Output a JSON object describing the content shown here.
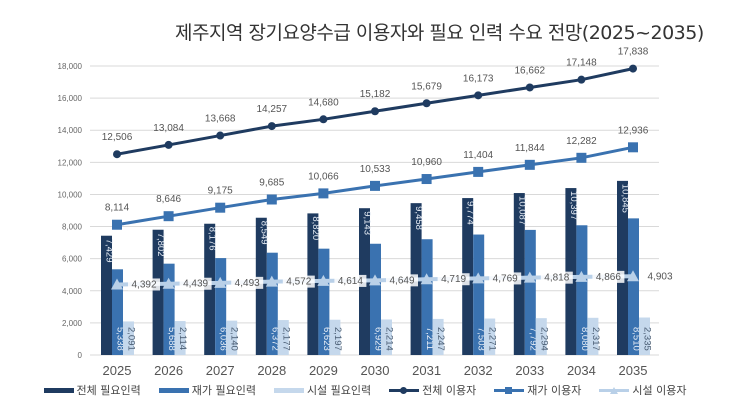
{
  "chart_data": {
    "type": "bar",
    "title": "제주지역 장기요양수급 이용자와 필요 인력 수요 전망(2025~2035)",
    "xlabel": "",
    "ylabel": "",
    "ylim": [
      0,
      18000
    ],
    "yticks": [
      0,
      2000,
      4000,
      6000,
      8000,
      10000,
      12000,
      14000,
      16000,
      18000
    ],
    "ytick_labels": [
      "0",
      "2,000",
      "4,000",
      "6,000",
      "8,000",
      "10,000",
      "12,000",
      "14,000",
      "16,000",
      "18,000"
    ],
    "grid": true,
    "legend_position": "bottom",
    "categories": [
      "2025",
      "2026",
      "2027",
      "2028",
      "2029",
      "2030",
      "2031",
      "2032",
      "2033",
      "2034",
      "2035"
    ],
    "series": [
      {
        "name": "전체 필요인력",
        "kind": "bar",
        "color": "#1f3b60",
        "values": [
          7429,
          7802,
          8176,
          8549,
          8820,
          9143,
          9458,
          9774,
          10087,
          10397,
          10845
        ],
        "labels": [
          "7,429",
          "7,802",
          "8,176",
          "8,549",
          "8,820",
          "9,143",
          "9,458",
          "9,774",
          "10,087",
          "10,397",
          "10,845"
        ]
      },
      {
        "name": "재가 필요인력",
        "kind": "bar",
        "color": "#3a72b0",
        "values": [
          5338,
          5688,
          6036,
          6372,
          6623,
          6929,
          7211,
          7503,
          7792,
          8080,
          8510
        ],
        "labels": [
          "5,338",
          "5,688",
          "6,036",
          "6,372",
          "6,623",
          "6,929",
          "7,211",
          "7,503",
          "7,792",
          "8,080",
          "8,510"
        ]
      },
      {
        "name": "시설 필요인력",
        "kind": "bar",
        "color": "#c5d8ec",
        "values": [
          2091,
          2114,
          2140,
          2177,
          2197,
          2214,
          2247,
          2271,
          2294,
          2317,
          2335
        ],
        "labels": [
          "2,091",
          "2,114",
          "2,140",
          "2,177",
          "2,197",
          "2,214",
          "2,247",
          "2,271",
          "2,294",
          "2,317",
          "2,335"
        ]
      },
      {
        "name": "전체 이용자",
        "kind": "line",
        "marker": "circle",
        "color": "#1f3b60",
        "values": [
          12506,
          13084,
          13668,
          14257,
          14680,
          15182,
          15679,
          16173,
          16662,
          17148,
          17838
        ],
        "labels": [
          "12,506",
          "13,084",
          "13,668",
          "14,257",
          "14,680",
          "15,182",
          "15,679",
          "16,173",
          "16,662",
          "17,148",
          "17,838"
        ]
      },
      {
        "name": "재가 이용자",
        "kind": "line",
        "marker": "square",
        "color": "#3a72b0",
        "values": [
          8114,
          8646,
          9175,
          9685,
          10066,
          10533,
          10960,
          11404,
          11844,
          12282,
          12936
        ],
        "labels": [
          "8,114",
          "8,646",
          "9,175",
          "9,685",
          "10,066",
          "10,533",
          "10,960",
          "11,404",
          "11,844",
          "12,282",
          "12,936"
        ]
      },
      {
        "name": "시설 이용자",
        "kind": "line",
        "marker": "triangle",
        "color": "#b9d0e8",
        "values": [
          4392,
          4439,
          4493,
          4572,
          4614,
          4649,
          4719,
          4769,
          4818,
          4866,
          4903
        ],
        "labels": [
          "4,392",
          "4,439",
          "4,493",
          "4,572",
          "4,614",
          "4,649",
          "4,719",
          "4,769",
          "4,818",
          "4,866",
          "4,903"
        ]
      }
    ]
  }
}
